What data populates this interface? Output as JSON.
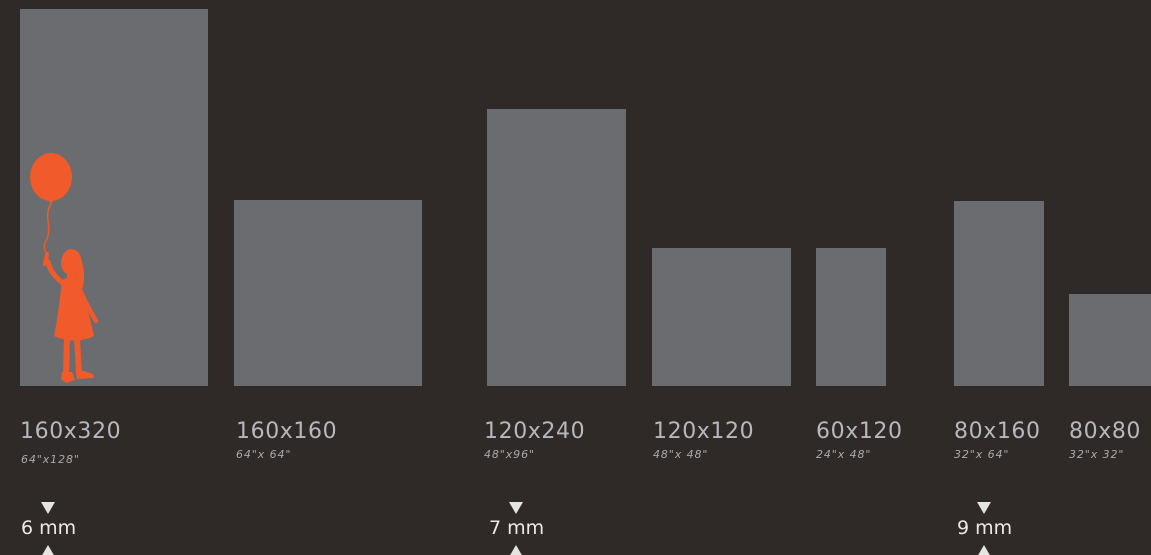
{
  "colors": {
    "background": "#2f2a28",
    "panel": "#6b6c70",
    "silhouette": "#f15a2b",
    "text": "#b6b8bb",
    "marker": "#e7e5e1"
  },
  "products": [
    {
      "metric": "160x320",
      "imperial": "64\"x128\""
    },
    {
      "metric": "160x160",
      "imperial": "64\"x 64\""
    },
    {
      "metric": "120x240",
      "imperial": "48\"x96\""
    },
    {
      "metric": "120x120",
      "imperial": "48\"x 48\""
    },
    {
      "metric": "60x120",
      "imperial": "24\"x 48\""
    },
    {
      "metric": "80x160",
      "imperial": "32\"x 64\""
    },
    {
      "metric": "80x80",
      "imperial": "32\"x 32\""
    }
  ],
  "thicknesses": [
    {
      "label": "6 mm"
    },
    {
      "label": "7 mm"
    },
    {
      "label": "9 mm"
    }
  ],
  "icons": {
    "figure": "girl-with-balloon-silhouette",
    "marker_top": "triangle-down-icon",
    "marker_bottom": "triangle-up-icon"
  }
}
